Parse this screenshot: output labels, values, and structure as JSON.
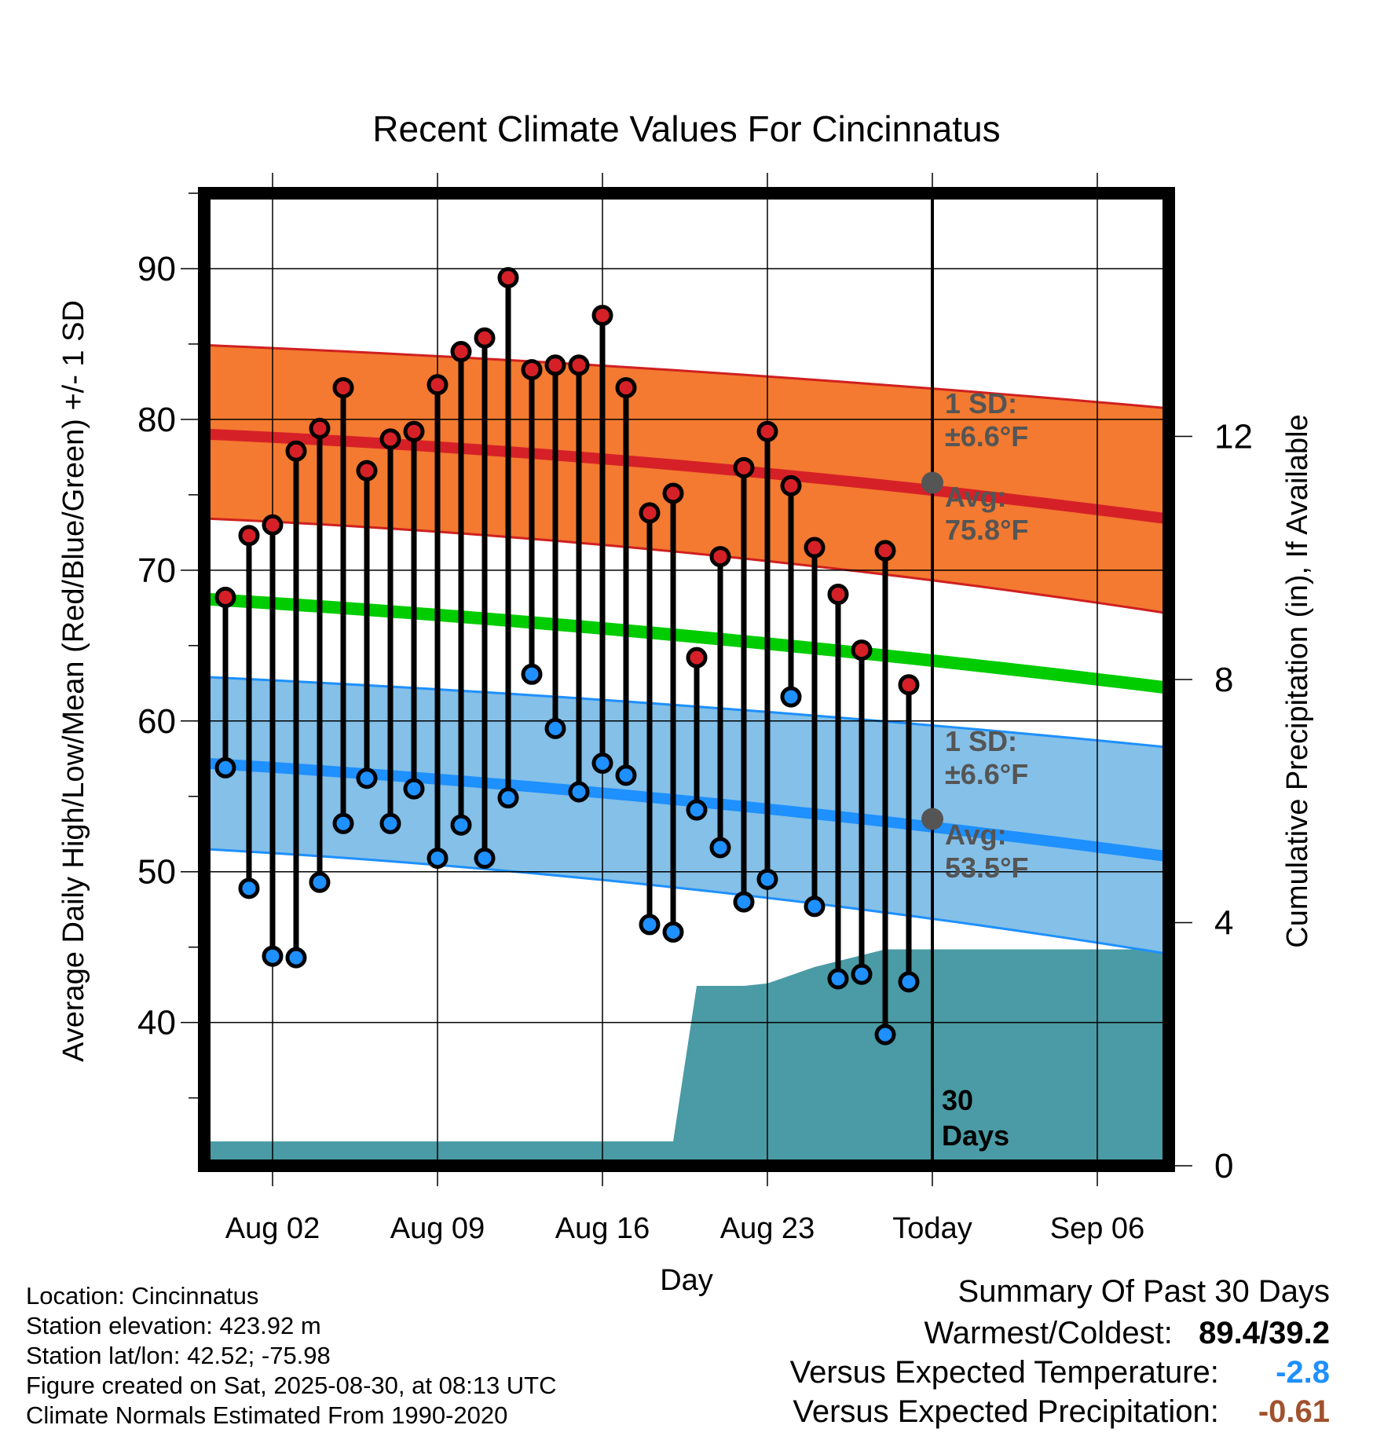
{
  "chart_data": {
    "type": "line",
    "title": "Recent Climate Values For Cincinnatus",
    "xlabel": "Day",
    "ylabel": "Average Daily High/Low/Mean (Red/Blue/Green) +/- 1 SD",
    "y2label": "Cumulative Precipitation (in), If Available",
    "x_ticks": [
      "Aug 02",
      "Aug 09",
      "Aug 16",
      "Aug 23",
      "Today",
      "Sep 06"
    ],
    "ylim": [
      30.5,
      95
    ],
    "y_ticks": [
      40,
      50,
      60,
      70,
      80,
      90
    ],
    "y2lim": [
      0,
      16
    ],
    "y2_ticks": [
      0,
      4,
      8,
      12
    ],
    "days": [
      "Jul 31",
      "Aug 01",
      "Aug 02",
      "Aug 03",
      "Aug 04",
      "Aug 05",
      "Aug 06",
      "Aug 07",
      "Aug 08",
      "Aug 09",
      "Aug 10",
      "Aug 11",
      "Aug 12",
      "Aug 13",
      "Aug 14",
      "Aug 15",
      "Aug 16",
      "Aug 17",
      "Aug 18",
      "Aug 19",
      "Aug 20",
      "Aug 21",
      "Aug 22",
      "Aug 23",
      "Aug 24",
      "Aug 25",
      "Aug 26",
      "Aug 27",
      "Aug 28",
      "Aug 29"
    ],
    "daily_high": [
      68.2,
      72.3,
      73.0,
      77.9,
      79.4,
      82.1,
      76.6,
      78.7,
      79.2,
      82.3,
      84.5,
      85.4,
      89.4,
      83.3,
      83.6,
      83.6,
      86.9,
      82.1,
      73.8,
      75.1,
      64.2,
      70.9,
      76.8,
      79.2,
      75.6,
      71.5,
      68.4,
      64.7,
      71.3,
      62.4
    ],
    "daily_low": [
      56.9,
      48.9,
      44.4,
      44.3,
      49.3,
      53.2,
      56.2,
      53.2,
      55.5,
      50.9,
      53.1,
      50.9,
      54.9,
      63.1,
      59.5,
      55.3,
      57.2,
      56.4,
      46.5,
      46.0,
      54.1,
      51.6,
      48.0,
      49.5,
      61.6,
      47.7,
      42.9,
      43.2,
      39.2,
      42.7
    ],
    "normal_high": {
      "x": [
        "Jul 29",
        "Aug 27",
        "Sep 10"
      ],
      "values": [
        79.1,
        75.8,
        73.2
      ]
    },
    "normal_high_band": {
      "upper": [
        85.0,
        82.4,
        80.6
      ],
      "lower": [
        73.5,
        69.9,
        66.9
      ]
    },
    "normal_low": {
      "x": [
        "Jul 29",
        "Aug 27",
        "Sep 10"
      ],
      "values": [
        57.3,
        53.5,
        50.8
      ]
    },
    "normal_low_band": {
      "upper": [
        63.0,
        60.1,
        58.1
      ],
      "lower": [
        51.6,
        47.5,
        44.3
      ]
    },
    "normal_mean": {
      "x": [
        "Jul 29",
        "Aug 27",
        "Sep 10"
      ],
      "values": [
        68.2,
        64.5,
        62.0
      ]
    },
    "precip": {
      "x": [
        "Jul 29",
        "Jul 30",
        "Aug 19",
        "Aug 20",
        "Aug 22",
        "Aug 23",
        "Aug 25",
        "Aug 28",
        "Sep 10"
      ],
      "values": [
        0.0,
        0.4,
        0.4,
        2.96,
        2.96,
        3.0,
        3.27,
        3.56,
        3.56
      ]
    },
    "annotations": {
      "high_sd": "1 SD:\n±6.6°F",
      "high_avg": "Avg:\n75.8°F",
      "low_sd": "1 SD:\n±6.6°F",
      "low_avg": "Avg:\n53.5°F",
      "days_label": "30\nDays"
    },
    "colors": {
      "high_band": "#f37a30",
      "high_line": "#d62027",
      "mean_line": "#00cc00",
      "low_band": "#84c0e8",
      "low_line": "#1e90ff",
      "precip": "#4a9ba5",
      "high_marker": "#d62027",
      "low_marker": "#1e90ff",
      "annotation": "#555555"
    }
  },
  "info": {
    "location": "Location: Cincinnatus",
    "elevation": "Station elevation: 423.92 m",
    "latlon": "Station lat/lon: 42.52; -75.98",
    "created": "Figure created on Sat, 2025-08-30, at 08:13 UTC",
    "normals": "Climate Normals Estimated From 1990-2020"
  },
  "summary": {
    "title": "Summary Of Past 30 Days",
    "warm_cold_label": "Warmest/Coldest:",
    "warm_cold_value": "89.4/39.2",
    "temp_label": "Versus Expected Temperature:",
    "temp_value": "-2.8",
    "temp_color": "#1e90ff",
    "precip_label": "Versus Expected Precipitation:",
    "precip_value": "-0.61",
    "precip_color": "#a0522d"
  }
}
